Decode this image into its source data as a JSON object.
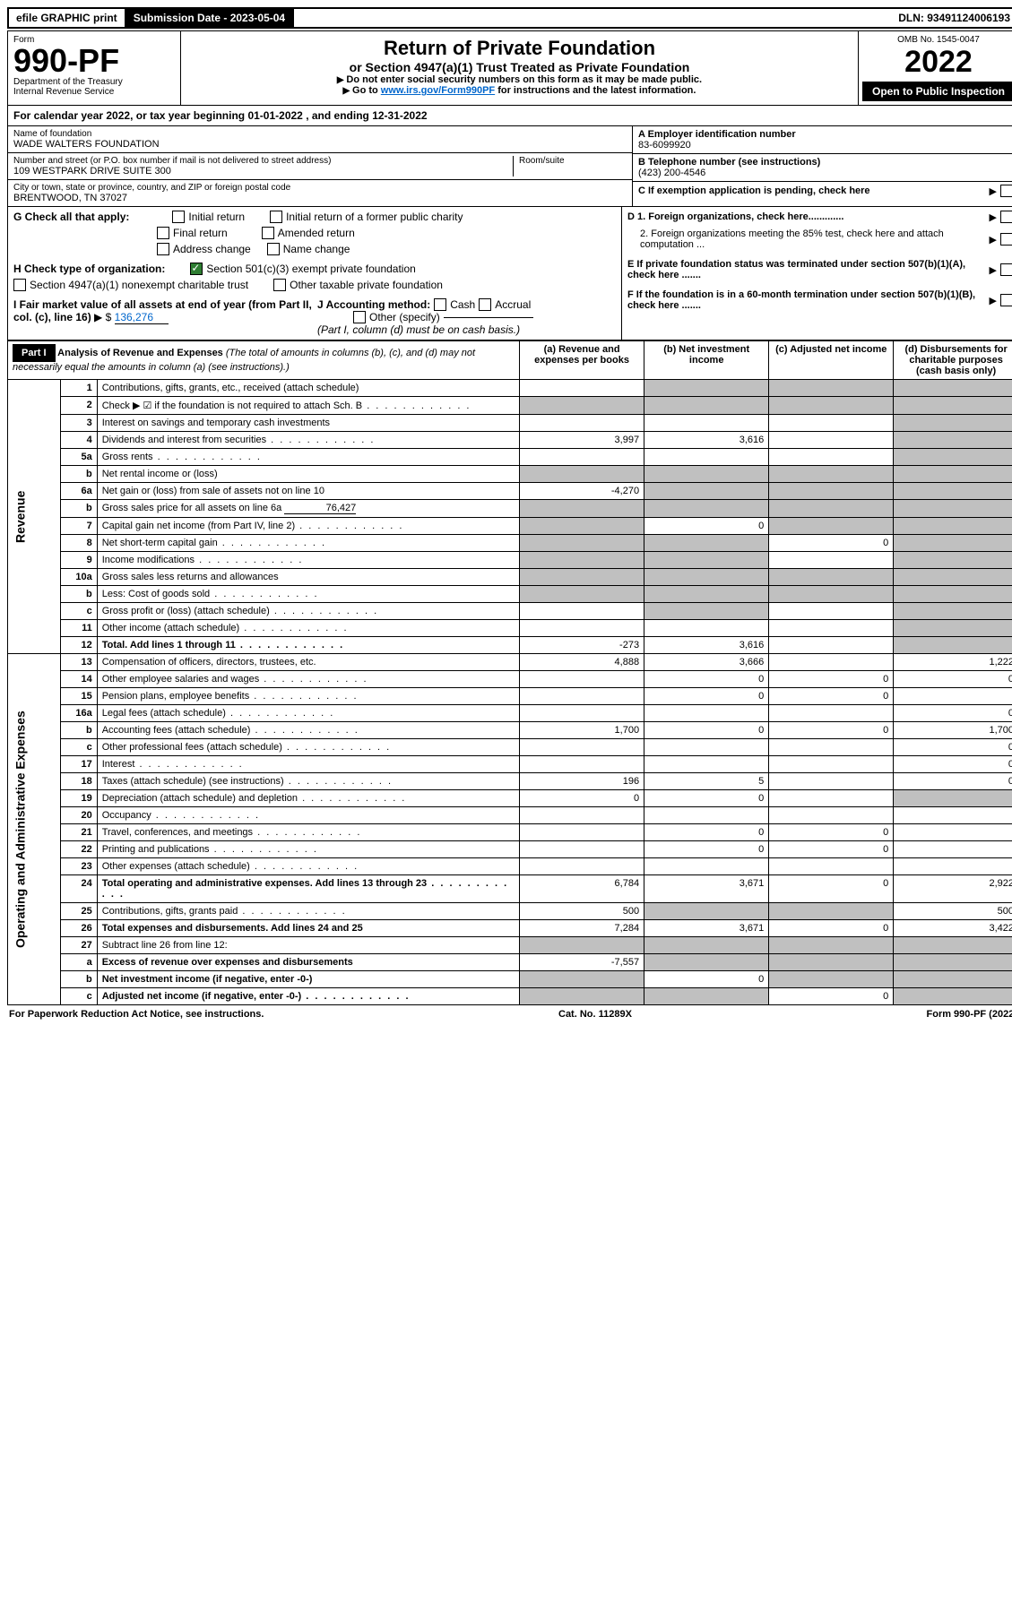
{
  "top_bar": {
    "efile": "efile GRAPHIC print",
    "submission_label": "Submission Date - 2023-05-04",
    "dln": "DLN: 93491124006193"
  },
  "header": {
    "form_label": "Form",
    "form_number": "990-PF",
    "dept": "Department of the Treasury",
    "irs": "Internal Revenue Service",
    "title": "Return of Private Foundation",
    "subtitle": "or Section 4947(a)(1) Trust Treated as Private Foundation",
    "instr1": "Do not enter social security numbers on this form as it may be made public.",
    "instr2_prefix": "Go to ",
    "instr2_link": "www.irs.gov/Form990PF",
    "instr2_suffix": " for instructions and the latest information.",
    "omb": "OMB No. 1545-0047",
    "year": "2022",
    "open_public": "Open to Public Inspection"
  },
  "cal_year": {
    "prefix": "For calendar year 2022, or tax year beginning ",
    "begin": "01-01-2022",
    "mid": " , and ending ",
    "end": "12-31-2022"
  },
  "info": {
    "name_label": "Name of foundation",
    "name": "WADE WALTERS FOUNDATION",
    "addr_label": "Number and street (or P.O. box number if mail is not delivered to street address)",
    "addr": "109 WESTPARK DRIVE SUITE 300",
    "room_label": "Room/suite",
    "city_label": "City or town, state or province, country, and ZIP or foreign postal code",
    "city": "BRENTWOOD, TN  37027",
    "a_label": "A Employer identification number",
    "a_val": "83-6099920",
    "b_label": "B Telephone number (see instructions)",
    "b_val": "(423) 200-4546",
    "c_label": "C If exemption application is pending, check here",
    "d1_label": "D 1. Foreign organizations, check here.............",
    "d2_label": "2. Foreign organizations meeting the 85% test, check here and attach computation ...",
    "e_label": "E  If private foundation status was terminated under section 507(b)(1)(A), check here .......",
    "f_label": "F  If the foundation is in a 60-month termination under section 507(b)(1)(B), check here ......."
  },
  "g": {
    "label": "G Check all that apply:",
    "opts": {
      "initial": "Initial return",
      "initial_former": "Initial return of a former public charity",
      "final": "Final return",
      "amended": "Amended return",
      "addr_change": "Address change",
      "name_change": "Name change"
    }
  },
  "h": {
    "label": "H Check type of organization:",
    "opt1": "Section 501(c)(3) exempt private foundation",
    "opt2": "Section 4947(a)(1) nonexempt charitable trust",
    "opt3": "Other taxable private foundation"
  },
  "i": {
    "label": "I Fair market value of all assets at end of year (from Part II, col. (c), line 16)",
    "val_prefix": "$",
    "val": "136,276"
  },
  "j": {
    "label": "J Accounting method:",
    "cash": "Cash",
    "accrual": "Accrual",
    "other": "Other (specify)",
    "note": "(Part I, column (d) must be on cash basis.)"
  },
  "part1": {
    "label": "Part I",
    "title": "Analysis of Revenue and Expenses",
    "title_note": "(The total of amounts in columns (b), (c), and (d) may not necessarily equal the amounts in column (a) (see instructions).)",
    "cols": {
      "a": "(a) Revenue and expenses per books",
      "b": "(b) Net investment income",
      "c": "(c) Adjusted net income",
      "d": "(d) Disbursements for charitable purposes (cash basis only)"
    }
  },
  "side_labels": {
    "revenue": "Revenue",
    "expenses": "Operating and Administrative Expenses"
  },
  "rows": [
    {
      "n": "1",
      "desc": "Contributions, gifts, grants, etc., received (attach schedule)",
      "a": "",
      "b": "s",
      "c": "s",
      "d": "s"
    },
    {
      "n": "2",
      "desc": "Check ▶ ☑ if the foundation is not required to attach Sch. B",
      "a": "s",
      "b": "s",
      "c": "s",
      "d": "s",
      "dots": true
    },
    {
      "n": "3",
      "desc": "Interest on savings and temporary cash investments",
      "a": "",
      "b": "",
      "c": "",
      "d": "s"
    },
    {
      "n": "4",
      "desc": "Dividends and interest from securities",
      "a": "3,997",
      "b": "3,616",
      "c": "",
      "d": "s",
      "dots": true
    },
    {
      "n": "5a",
      "desc": "Gross rents",
      "a": "",
      "b": "",
      "c": "",
      "d": "s",
      "dots": true
    },
    {
      "n": "b",
      "desc": "Net rental income or (loss)",
      "a": "s",
      "b": "s",
      "c": "s",
      "d": "s"
    },
    {
      "n": "6a",
      "desc": "Net gain or (loss) from sale of assets not on line 10",
      "a": "-4,270",
      "b": "s",
      "c": "s",
      "d": "s"
    },
    {
      "n": "b",
      "desc": "Gross sales price for all assets on line 6a",
      "extra": "76,427",
      "a": "s",
      "b": "s",
      "c": "s",
      "d": "s"
    },
    {
      "n": "7",
      "desc": "Capital gain net income (from Part IV, line 2)",
      "a": "s",
      "b": "0",
      "c": "s",
      "d": "s",
      "dots": true
    },
    {
      "n": "8",
      "desc": "Net short-term capital gain",
      "a": "s",
      "b": "s",
      "c": "0",
      "d": "s",
      "dots": true
    },
    {
      "n": "9",
      "desc": "Income modifications",
      "a": "s",
      "b": "s",
      "c": "",
      "d": "s",
      "dots": true
    },
    {
      "n": "10a",
      "desc": "Gross sales less returns and allowances",
      "a": "s",
      "b": "s",
      "c": "s",
      "d": "s"
    },
    {
      "n": "b",
      "desc": "Less: Cost of goods sold",
      "a": "s",
      "b": "s",
      "c": "s",
      "d": "s",
      "dots": true
    },
    {
      "n": "c",
      "desc": "Gross profit or (loss) (attach schedule)",
      "a": "",
      "b": "s",
      "c": "",
      "d": "s",
      "dots": true
    },
    {
      "n": "11",
      "desc": "Other income (attach schedule)",
      "a": "",
      "b": "",
      "c": "",
      "d": "s",
      "dots": true
    },
    {
      "n": "12",
      "desc": "Total. Add lines 1 through 11",
      "a": "-273",
      "b": "3,616",
      "c": "",
      "d": "s",
      "bold": true,
      "dots": true
    },
    {
      "n": "13",
      "desc": "Compensation of officers, directors, trustees, etc.",
      "a": "4,888",
      "b": "3,666",
      "c": "",
      "d": "1,222"
    },
    {
      "n": "14",
      "desc": "Other employee salaries and wages",
      "a": "",
      "b": "0",
      "c": "0",
      "d": "0",
      "dots": true
    },
    {
      "n": "15",
      "desc": "Pension plans, employee benefits",
      "a": "",
      "b": "0",
      "c": "0",
      "d": "",
      "dots": true
    },
    {
      "n": "16a",
      "desc": "Legal fees (attach schedule)",
      "a": "",
      "b": "",
      "c": "",
      "d": "0",
      "dots": true
    },
    {
      "n": "b",
      "desc": "Accounting fees (attach schedule)",
      "a": "1,700",
      "b": "0",
      "c": "0",
      "d": "1,700",
      "dots": true
    },
    {
      "n": "c",
      "desc": "Other professional fees (attach schedule)",
      "a": "",
      "b": "",
      "c": "",
      "d": "0",
      "dots": true
    },
    {
      "n": "17",
      "desc": "Interest",
      "a": "",
      "b": "",
      "c": "",
      "d": "0",
      "dots": true
    },
    {
      "n": "18",
      "desc": "Taxes (attach schedule) (see instructions)",
      "a": "196",
      "b": "5",
      "c": "",
      "d": "0",
      "dots": true
    },
    {
      "n": "19",
      "desc": "Depreciation (attach schedule) and depletion",
      "a": "0",
      "b": "0",
      "c": "",
      "d": "s",
      "dots": true
    },
    {
      "n": "20",
      "desc": "Occupancy",
      "a": "",
      "b": "",
      "c": "",
      "d": "",
      "dots": true
    },
    {
      "n": "21",
      "desc": "Travel, conferences, and meetings",
      "a": "",
      "b": "0",
      "c": "0",
      "d": "",
      "dots": true
    },
    {
      "n": "22",
      "desc": "Printing and publications",
      "a": "",
      "b": "0",
      "c": "0",
      "d": "",
      "dots": true
    },
    {
      "n": "23",
      "desc": "Other expenses (attach schedule)",
      "a": "",
      "b": "",
      "c": "",
      "d": "",
      "dots": true
    },
    {
      "n": "24",
      "desc": "Total operating and administrative expenses. Add lines 13 through 23",
      "a": "6,784",
      "b": "3,671",
      "c": "0",
      "d": "2,922",
      "bold": true,
      "dots": true
    },
    {
      "n": "25",
      "desc": "Contributions, gifts, grants paid",
      "a": "500",
      "b": "s",
      "c": "s",
      "d": "500",
      "dots": true
    },
    {
      "n": "26",
      "desc": "Total expenses and disbursements. Add lines 24 and 25",
      "a": "7,284",
      "b": "3,671",
      "c": "0",
      "d": "3,422",
      "bold": true
    },
    {
      "n": "27",
      "desc": "Subtract line 26 from line 12:",
      "a": "s",
      "b": "s",
      "c": "s",
      "d": "s"
    },
    {
      "n": "a",
      "desc": "Excess of revenue over expenses and disbursements",
      "a": "-7,557",
      "b": "s",
      "c": "s",
      "d": "s",
      "bold": true
    },
    {
      "n": "b",
      "desc": "Net investment income (if negative, enter -0-)",
      "a": "s",
      "b": "0",
      "c": "s",
      "d": "s",
      "bold": true
    },
    {
      "n": "c",
      "desc": "Adjusted net income (if negative, enter -0-)",
      "a": "s",
      "b": "s",
      "c": "0",
      "d": "s",
      "bold": true,
      "dots": true
    }
  ],
  "footer": {
    "left": "For Paperwork Reduction Act Notice, see instructions.",
    "mid": "Cat. No. 11289X",
    "right": "Form 990-PF (2022)"
  },
  "colors": {
    "link": "#0066cc",
    "shaded": "#c0c0c0",
    "check_green": "#2e7d32"
  }
}
